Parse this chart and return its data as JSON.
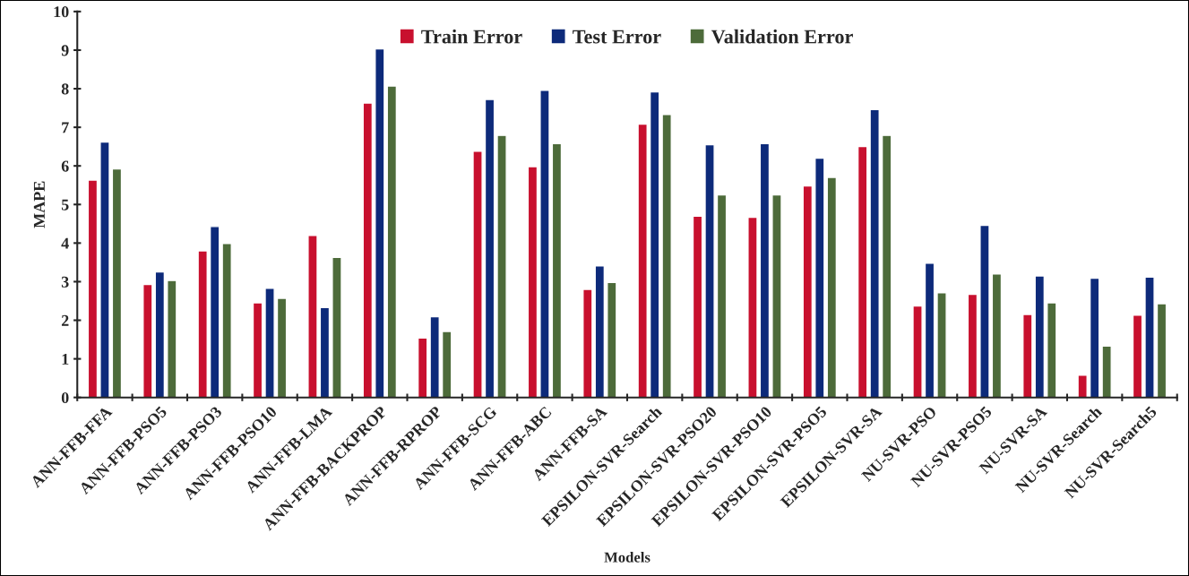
{
  "chart_data": {
    "type": "bar",
    "xlabel": "Models",
    "ylabel": "MAPE",
    "categories": [
      "ANN-FFB-FFA",
      "ANN-FFB-PSO5",
      "ANN-FFB-PSO3",
      "ANN-FFB-PSO10",
      "ANN-FFB-LMA",
      "ANN-FFB-BACKPROP",
      "ANN-FFB-RPROP",
      "ANN-FFB-SCG",
      "ANN-FFB-ABC",
      "ANN-FFB-SA",
      "EPSILON-SVR-Search",
      "EPSILON-SVR-PSO20",
      "EPSILON-SVR-PSO10",
      "EPSILON-SVR-PSO5",
      "EPSILON-SVR-SA",
      "NU-SVR-PSO",
      "NU-SVR-PSO5",
      "NU-SVR-SA",
      "NU-SVR-Search",
      "NU-SVR-Search5"
    ],
    "series": [
      {
        "name": "Train Error",
        "color": "#c8102e",
        "values": [
          5.63,
          2.93,
          3.8,
          2.45,
          4.2,
          7.63,
          1.54,
          6.38,
          5.98,
          2.8,
          7.08,
          4.7,
          4.67,
          5.48,
          6.5,
          2.37,
          2.67,
          2.15,
          0.58,
          2.13
        ]
      },
      {
        "name": "Test Error",
        "color": "#0d2a7a",
        "values": [
          6.62,
          3.25,
          4.43,
          2.83,
          2.33,
          9.03,
          2.09,
          7.72,
          7.96,
          3.41,
          7.92,
          6.55,
          6.58,
          6.2,
          7.46,
          3.48,
          4.46,
          3.15,
          3.09,
          3.12
        ]
      },
      {
        "name": "Validation Error",
        "color": "#4d6b3a",
        "values": [
          5.92,
          3.03,
          3.99,
          2.57,
          3.63,
          8.07,
          1.71,
          6.79,
          6.58,
          2.98,
          7.33,
          5.25,
          5.25,
          5.7,
          6.79,
          2.71,
          3.2,
          2.45,
          1.33,
          2.43
        ]
      }
    ],
    "ylim": [
      0,
      10
    ],
    "yticks": [
      0,
      1,
      2,
      3,
      4,
      5,
      6,
      7,
      8,
      9,
      10
    ],
    "grid": false,
    "legend": "top"
  }
}
